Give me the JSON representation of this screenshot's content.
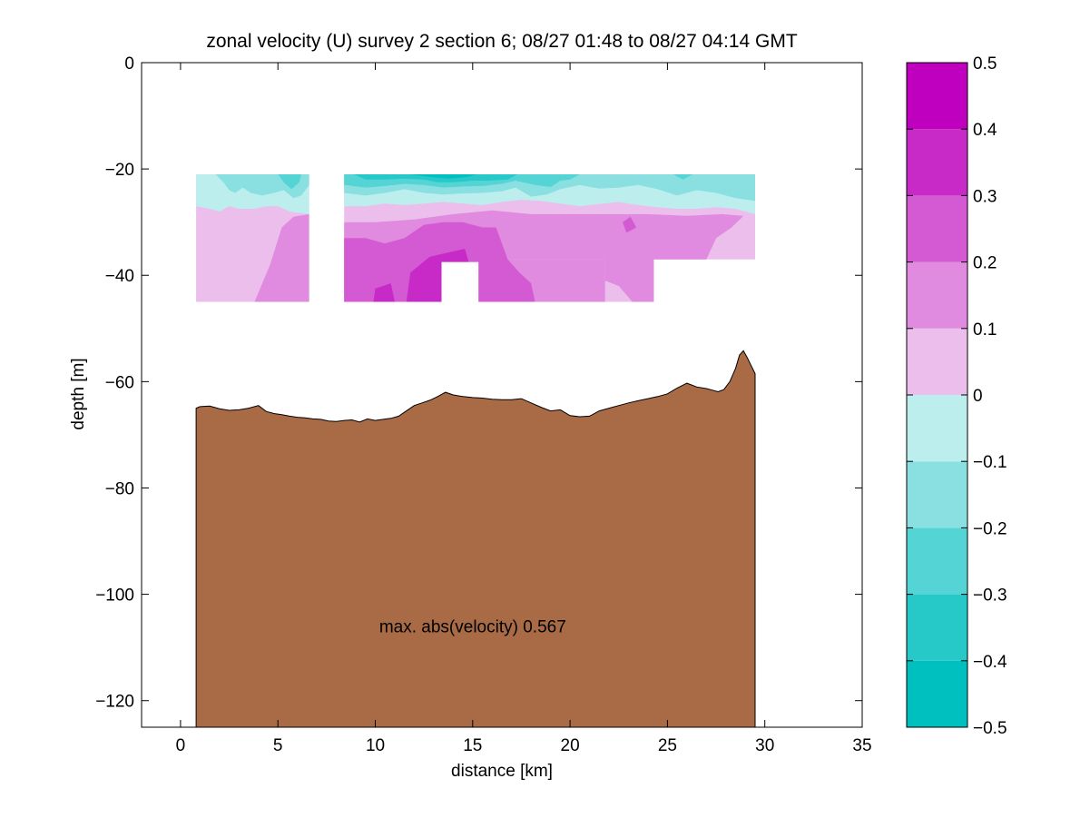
{
  "chart_data": {
    "type": "contour",
    "title": "zonal velocity (U) survey 2 section 6; 08/27 01:48 to 08/27 04:14 GMT",
    "xlabel": "distance [km]",
    "ylabel": "depth [m]",
    "xlim": [
      -2,
      35
    ],
    "ylim": [
      -125,
      0
    ],
    "xticks": [
      0,
      5,
      10,
      15,
      20,
      25,
      30,
      35
    ],
    "yticks": [
      0,
      -20,
      -40,
      -60,
      -80,
      -100,
      -120
    ],
    "grid": false,
    "annotation": {
      "text": "max. abs(velocity) 0.567",
      "x": 15,
      "y": -106
    },
    "colorbar": {
      "levels": [
        -0.5,
        -0.4,
        -0.3,
        -0.2,
        -0.1,
        0,
        0.1,
        0.2,
        0.3,
        0.4,
        0.5
      ],
      "tick_labels": [
        "−0.5",
        "−0.4",
        "−0.3",
        "−0.2",
        "−0.1",
        "0",
        "0.1",
        "0.2",
        "0.3",
        "0.4",
        "0.5"
      ],
      "colors": [
        "#00bfbf",
        "#26c8c8",
        "#54d4d4",
        "#8ae0e0",
        "#bdeeee",
        "#ecbeec",
        "#e08ae0",
        "#d45ad4",
        "#c82ac8",
        "#bf00bf"
      ]
    },
    "bottom": {
      "color": "#a86b46",
      "x": [
        0.8,
        1.0,
        1.5,
        2.0,
        2.5,
        3.0,
        3.5,
        4.0,
        4.4,
        4.8,
        5.2,
        5.6,
        6.0,
        6.4,
        6.8,
        7.2,
        7.6,
        8.0,
        8.4,
        8.8,
        9.2,
        9.6,
        10.0,
        10.4,
        10.8,
        11.2,
        11.6,
        12.0,
        12.4,
        12.8,
        13.2,
        13.6,
        14.0,
        14.5,
        15.0,
        15.5,
        16.0,
        16.5,
        17.0,
        17.5,
        18.0,
        18.5,
        19.0,
        19.5,
        20.0,
        20.5,
        21.0,
        21.5,
        22.0,
        22.5,
        23.0,
        23.5,
        24.0,
        24.5,
        25.0,
        25.5,
        26.0,
        26.5,
        27.0,
        27.3,
        27.6,
        27.9,
        28.2,
        28.5,
        28.7,
        28.9,
        29.1,
        29.3,
        29.5
      ],
      "y": [
        -65,
        -64.7,
        -64.6,
        -65.1,
        -65.4,
        -65.3,
        -65.0,
        -64.5,
        -65.6,
        -66.0,
        -66.2,
        -66.5,
        -66.7,
        -66.8,
        -67.0,
        -67.1,
        -67.4,
        -67.5,
        -67.3,
        -67.2,
        -67.6,
        -67.0,
        -67.3,
        -67.1,
        -66.9,
        -66.5,
        -65.5,
        -64.5,
        -64.0,
        -63.5,
        -62.8,
        -62.0,
        -62.5,
        -62.8,
        -63.0,
        -63.1,
        -63.3,
        -63.4,
        -63.4,
        -63.2,
        -64.0,
        -64.8,
        -65.5,
        -65.3,
        -66.4,
        -66.6,
        -66.5,
        -65.5,
        -65.0,
        -64.5,
        -64.0,
        -63.6,
        -63.2,
        -62.8,
        -62.3,
        -61.2,
        -60.3,
        -61.0,
        -61.3,
        -61.6,
        -61.9,
        -61.5,
        -60.0,
        -57.5,
        -55.0,
        -54.2,
        -55.5,
        -57.0,
        -58.5
      ]
    },
    "contour_patches": [
      {
        "level": 0.05,
        "points": [
          [
            0.8,
            -21
          ],
          [
            6.6,
            -21
          ],
          [
            6.6,
            -45
          ],
          [
            0.8,
            -45
          ]
        ]
      },
      {
        "level": 0.15,
        "points": [
          [
            3.8,
            -45
          ],
          [
            4.6,
            -38
          ],
          [
            5.2,
            -31
          ],
          [
            5.8,
            -29
          ],
          [
            6.6,
            -28.5
          ],
          [
            6.6,
            -45
          ]
        ]
      },
      {
        "level": -0.05,
        "points": [
          [
            0.8,
            -21
          ],
          [
            6.6,
            -21
          ],
          [
            6.6,
            -28.5
          ],
          [
            5.6,
            -28
          ],
          [
            5.0,
            -27
          ],
          [
            4.4,
            -27
          ],
          [
            3.8,
            -27.5
          ],
          [
            3.0,
            -27.5
          ],
          [
            2.5,
            -27
          ],
          [
            2.0,
            -28
          ],
          [
            1.5,
            -27.5
          ],
          [
            0.8,
            -27
          ]
        ]
      },
      {
        "level": -0.15,
        "points": [
          [
            1.8,
            -21
          ],
          [
            6.6,
            -21
          ],
          [
            6.6,
            -23
          ],
          [
            6.2,
            -25
          ],
          [
            5.8,
            -25.5
          ],
          [
            5.3,
            -24
          ],
          [
            4.8,
            -24.5
          ],
          [
            4.2,
            -25
          ],
          [
            3.6,
            -24.5
          ],
          [
            3.2,
            -23.5
          ],
          [
            2.8,
            -24.5
          ],
          [
            2.5,
            -24
          ],
          [
            2.2,
            -22.5
          ]
        ]
      },
      {
        "level": -0.25,
        "points": [
          [
            5.0,
            -21
          ],
          [
            6.2,
            -21
          ],
          [
            6.1,
            -22.5
          ],
          [
            5.7,
            -23.8
          ],
          [
            5.3,
            -22.5
          ]
        ]
      },
      {
        "level": 0.05,
        "points": [
          [
            8.4,
            -21
          ],
          [
            29.5,
            -21
          ],
          [
            29.5,
            -37
          ],
          [
            24.3,
            -37
          ],
          [
            24.3,
            -45
          ],
          [
            8.4,
            -45
          ]
        ]
      },
      {
        "level": 0.15,
        "points": [
          [
            8.4,
            -30
          ],
          [
            10,
            -30
          ],
          [
            12,
            -29.5
          ],
          [
            14,
            -28.5
          ],
          [
            16,
            -27.8
          ],
          [
            18,
            -28.5
          ],
          [
            20,
            -28.5
          ],
          [
            22,
            -28.5
          ],
          [
            24,
            -28.5
          ],
          [
            26,
            -28.8
          ],
          [
            27.8,
            -28.5
          ],
          [
            28.9,
            -28.8
          ],
          [
            28.3,
            -31
          ],
          [
            27.5,
            -33
          ],
          [
            27.0,
            -37
          ],
          [
            24.3,
            -37
          ],
          [
            24.3,
            -45
          ],
          [
            23.2,
            -45
          ],
          [
            22.5,
            -42
          ],
          [
            21.8,
            -41
          ],
          [
            21.8,
            -37
          ],
          [
            8.4,
            -37
          ]
        ]
      },
      {
        "level": 0.15,
        "points": [
          [
            8.4,
            -37
          ],
          [
            21.8,
            -37
          ],
          [
            21.8,
            -45
          ],
          [
            8.4,
            -45
          ]
        ]
      },
      {
        "level": 0.25,
        "points": [
          [
            8.4,
            -33
          ],
          [
            9.5,
            -33
          ],
          [
            10.5,
            -34
          ],
          [
            11.5,
            -33
          ],
          [
            12.5,
            -30.5
          ],
          [
            13.5,
            -30
          ],
          [
            14.5,
            -30
          ],
          [
            15.5,
            -31
          ],
          [
            16.2,
            -31
          ],
          [
            16.8,
            -37
          ],
          [
            17.4,
            -39.5
          ],
          [
            18.0,
            -41.5
          ],
          [
            18.2,
            -45
          ],
          [
            8.4,
            -45
          ]
        ]
      },
      {
        "level": 0.35,
        "points": [
          [
            11.6,
            -45
          ],
          [
            11.8,
            -39.5
          ],
          [
            12.8,
            -36.5
          ],
          [
            14.0,
            -35.5
          ],
          [
            14.6,
            -35
          ],
          [
            15.0,
            -40
          ],
          [
            15.1,
            -45
          ]
        ]
      },
      {
        "level": 0.35,
        "points": [
          [
            9.9,
            -45
          ],
          [
            10.0,
            -42.5
          ],
          [
            10.8,
            -41.5
          ],
          [
            11.0,
            -45
          ]
        ]
      },
      {
        "level": 0.25,
        "points": [
          [
            22.7,
            -30
          ],
          [
            23.1,
            -29
          ],
          [
            23.4,
            -31
          ],
          [
            22.9,
            -32
          ]
        ]
      },
      {
        "level": -0.05,
        "points": [
          [
            8.4,
            -21
          ],
          [
            29.5,
            -21
          ],
          [
            29.5,
            -28.5
          ],
          [
            28.5,
            -27.5
          ],
          [
            27.5,
            -27.2
          ],
          [
            26.5,
            -27.5
          ],
          [
            25.5,
            -27.5
          ],
          [
            24.5,
            -27.2
          ],
          [
            23.5,
            -26.8
          ],
          [
            22.5,
            -26.2
          ],
          [
            21.5,
            -26.6
          ],
          [
            20.5,
            -27.0
          ],
          [
            19.5,
            -26.5
          ],
          [
            18.5,
            -26.0
          ],
          [
            17.5,
            -25.8
          ],
          [
            16.5,
            -26.2
          ],
          [
            15.5,
            -26.8
          ],
          [
            14.5,
            -26.5
          ],
          [
            13.5,
            -26.2
          ],
          [
            12.5,
            -26.5
          ],
          [
            11.5,
            -26.8
          ],
          [
            10.5,
            -26.5
          ],
          [
            9.5,
            -27.0
          ],
          [
            8.4,
            -27.0
          ]
        ]
      },
      {
        "level": -0.15,
        "points": [
          [
            8.4,
            -21
          ],
          [
            29.5,
            -21
          ],
          [
            29.5,
            -26
          ],
          [
            28.5,
            -25.5
          ],
          [
            27.5,
            -24.5
          ],
          [
            26.5,
            -24
          ],
          [
            25.5,
            -25
          ],
          [
            24.5,
            -23.8
          ],
          [
            23.5,
            -23
          ],
          [
            22.5,
            -23.5
          ],
          [
            21.5,
            -23.7
          ],
          [
            20.5,
            -23
          ],
          [
            19.5,
            -23.8
          ],
          [
            18.8,
            -24.8
          ],
          [
            18.0,
            -25.2
          ],
          [
            17.2,
            -23.5
          ],
          [
            16.5,
            -24.2
          ],
          [
            15.5,
            -24.5
          ],
          [
            14.5,
            -24.6
          ],
          [
            13.5,
            -24.8
          ],
          [
            12.5,
            -24.5
          ],
          [
            11.5,
            -23.8
          ],
          [
            10.5,
            -24.5
          ],
          [
            9.5,
            -25
          ],
          [
            8.4,
            -24.5
          ]
        ]
      },
      {
        "level": -0.25,
        "points": [
          [
            8.4,
            -21
          ],
          [
            20.5,
            -21
          ],
          [
            20.0,
            -22
          ],
          [
            19.5,
            -22.2
          ],
          [
            19.0,
            -23.4
          ],
          [
            18.2,
            -23
          ],
          [
            17.2,
            -22.2
          ],
          [
            16.5,
            -22.8
          ],
          [
            15.5,
            -23.2
          ],
          [
            14.5,
            -23.3
          ],
          [
            13.5,
            -23.5
          ],
          [
            12.5,
            -23
          ],
          [
            11.5,
            -22.8
          ],
          [
            10.5,
            -23.2
          ],
          [
            9.5,
            -23.5
          ],
          [
            8.4,
            -23
          ]
        ]
      },
      {
        "level": -0.35,
        "points": [
          [
            8.9,
            -21
          ],
          [
            17.3,
            -21
          ],
          [
            16.8,
            -22
          ],
          [
            15.8,
            -22.2
          ],
          [
            15.0,
            -22.2
          ],
          [
            14.0,
            -22.5
          ],
          [
            13.2,
            -22.5
          ],
          [
            12.5,
            -22
          ],
          [
            11.5,
            -21.8
          ],
          [
            10.5,
            -22
          ],
          [
            9.5,
            -22
          ]
        ]
      },
      {
        "level": -0.45,
        "points": [
          [
            11.8,
            -21
          ],
          [
            15.2,
            -21
          ],
          [
            14.7,
            -21.5
          ],
          [
            13.8,
            -21.8
          ],
          [
            12.8,
            -21.5
          ]
        ]
      },
      {
        "level": -0.25,
        "points": [
          [
            25.3,
            -21
          ],
          [
            26.3,
            -21
          ],
          [
            25.8,
            -22
          ]
        ]
      },
      {
        "level": -0.15,
        "points": [
          [
            29.0,
            -21
          ],
          [
            29.5,
            -21
          ],
          [
            29.5,
            -23.5
          ]
        ]
      },
      {
        "level": null,
        "points": [
          [
            13.4,
            -37.5
          ],
          [
            15.3,
            -37.5
          ],
          [
            15.3,
            -45
          ],
          [
            13.4,
            -45
          ]
        ]
      }
    ]
  }
}
